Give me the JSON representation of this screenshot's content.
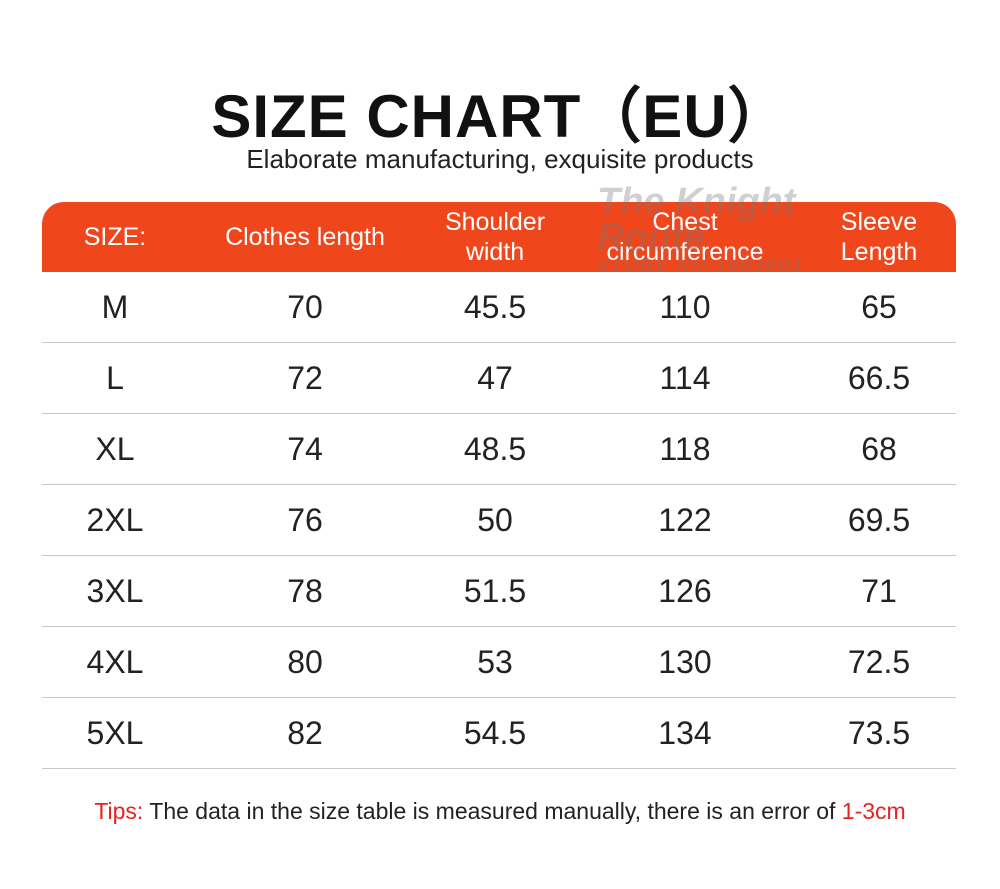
{
  "title": "SIZE CHART（EU）",
  "subtitle": "Elaborate manufacturing, exquisite products",
  "watermark": {
    "line1": "The Knight Route",
    "line2": "STORE NO.5603001"
  },
  "colors": {
    "header": "#f0461c",
    "tips": "#e8231f"
  },
  "table": {
    "headers": [
      "SIZE:",
      "Clothes length",
      "Shoulder width",
      "Chest circumference",
      "Sleeve Length"
    ],
    "rows": [
      [
        "M",
        "70",
        "45.5",
        "110",
        "65"
      ],
      [
        "L",
        "72",
        "47",
        "114",
        "66.5"
      ],
      [
        "XL",
        "74",
        "48.5",
        "118",
        "68"
      ],
      [
        "2XL",
        "76",
        "50",
        "122",
        "69.5"
      ],
      [
        "3XL",
        "78",
        "51.5",
        "126",
        "71"
      ],
      [
        "4XL",
        "80",
        "53",
        "130",
        "72.5"
      ],
      [
        "5XL",
        "82",
        "54.5",
        "134",
        "73.5"
      ]
    ]
  },
  "tips": {
    "label": "Tips:",
    "text": " The data in the size table is measured manually, there is an error of ",
    "range": "1-3cm"
  }
}
